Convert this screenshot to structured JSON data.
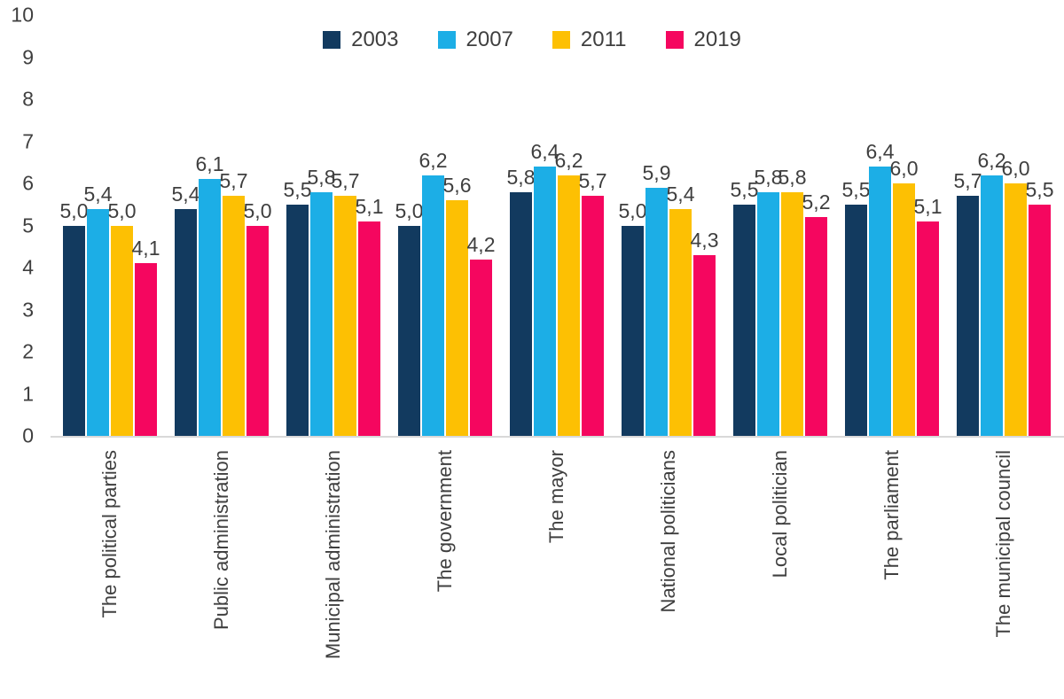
{
  "chart_data": {
    "type": "bar",
    "title": "",
    "xlabel": "",
    "ylabel": "",
    "categories": [
      "The political parties",
      "Public administration",
      "Municipal administration",
      "The government",
      "The mayor",
      "National politicians",
      "Local politician",
      "The parliament",
      "The municipal council"
    ],
    "series": [
      {
        "name": "2003",
        "color": "#123A5F",
        "values": [
          5.0,
          5.4,
          5.5,
          5.0,
          5.8,
          5.0,
          5.5,
          5.5,
          5.7
        ]
      },
      {
        "name": "2007",
        "color": "#1CAEE6",
        "values": [
          5.4,
          6.1,
          5.8,
          6.2,
          6.4,
          5.9,
          5.8,
          6.4,
          6.2
        ]
      },
      {
        "name": "2011",
        "color": "#FDC003",
        "values": [
          5.0,
          5.7,
          5.7,
          5.6,
          6.2,
          5.4,
          5.8,
          6.0,
          6.0
        ]
      },
      {
        "name": "2019",
        "color": "#F5065F",
        "values": [
          4.1,
          5.0,
          5.1,
          4.2,
          5.7,
          4.3,
          5.2,
          5.1,
          5.5
        ]
      }
    ],
    "ylim": [
      0,
      10
    ],
    "ytick_step": 1,
    "yticks": [
      0,
      1,
      2,
      3,
      4,
      5,
      6,
      7,
      8,
      9,
      10
    ],
    "decimal_separator": ",",
    "data_labels": true,
    "legend_position": "top",
    "grid": false,
    "category_label_rotation_deg": -90,
    "text_color": "#3f3f3f",
    "axis_line_color": "#d9d9d9"
  }
}
